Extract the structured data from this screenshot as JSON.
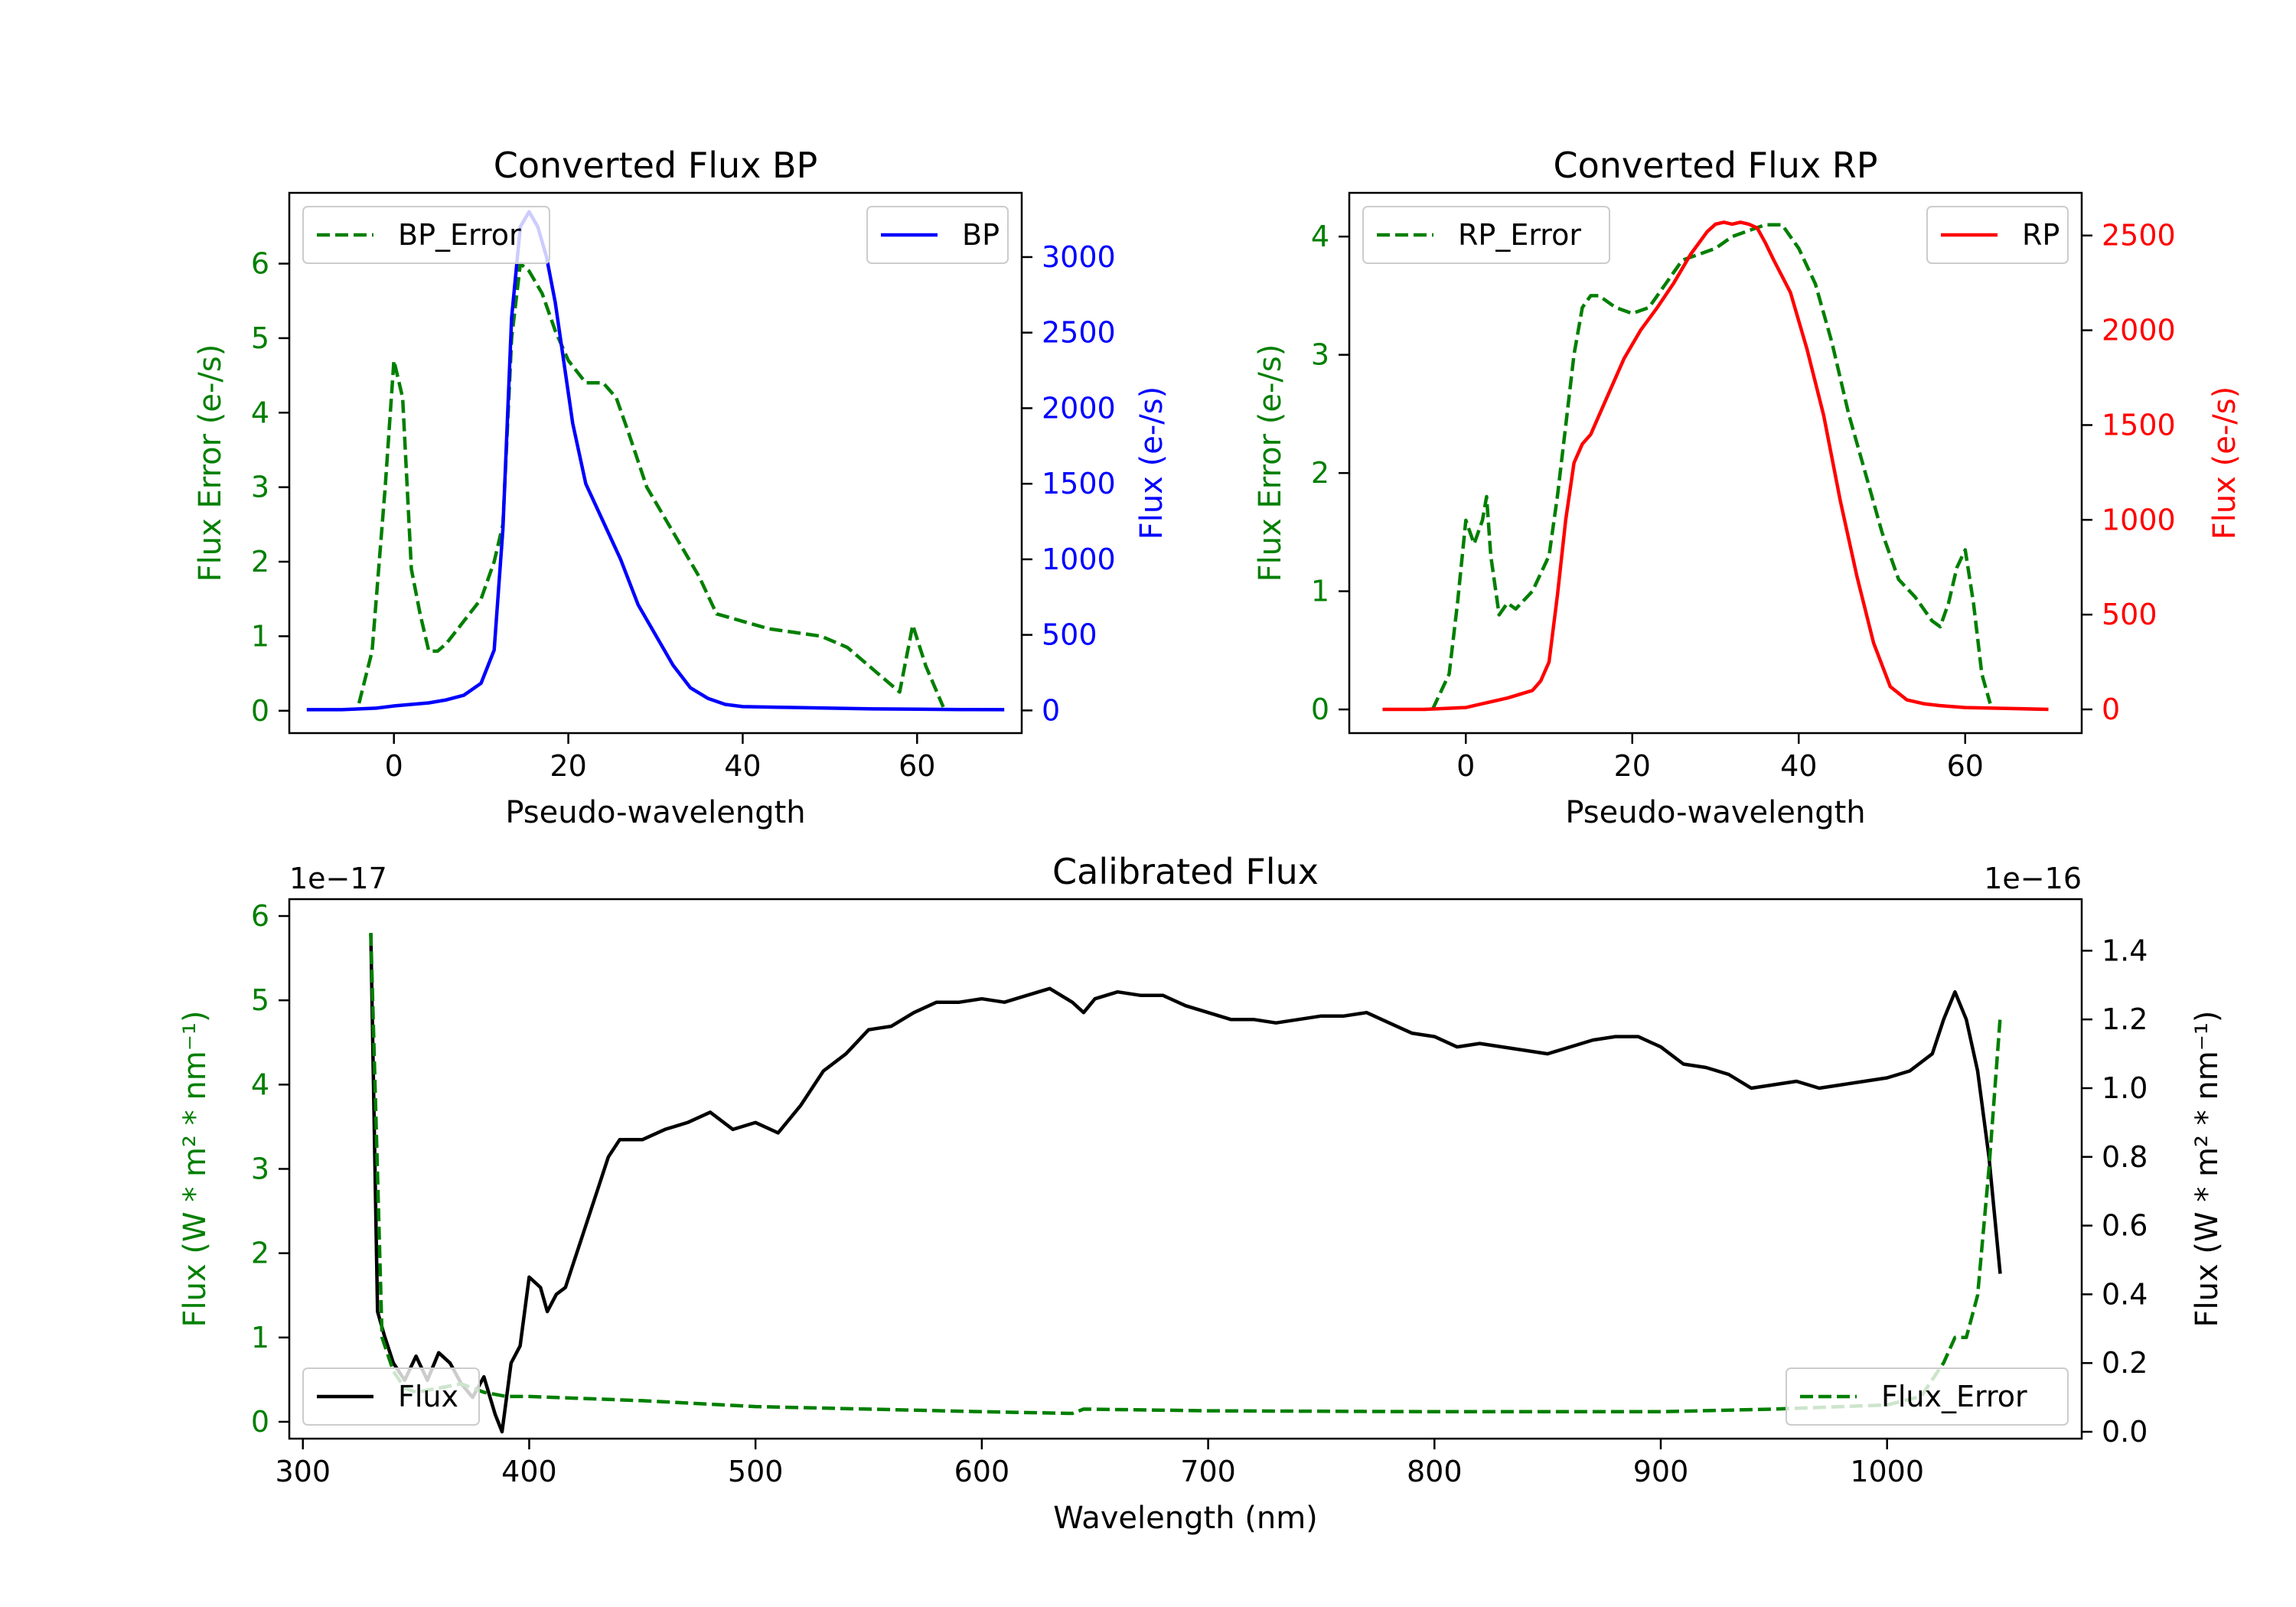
{
  "figure": {
    "background": "#ffffff"
  },
  "colors": {
    "green": "#007f00",
    "blue": "#0000ff",
    "red": "#ff0000",
    "black": "#000000",
    "axis": "#000000"
  },
  "chart_data": [
    {
      "id": "bp",
      "type": "line",
      "title": "Converted Flux BP",
      "xlabel": "Pseudo-wavelength",
      "xlim": [
        -12,
        72
      ],
      "xticks": [
        0,
        20,
        40,
        60
      ],
      "xtick_labels": [
        "0",
        "20",
        "40",
        "60"
      ],
      "left_axis": {
        "label": "Flux Error (e-/s)",
        "color": "#007f00",
        "ylim": [
          -0.3,
          6.95
        ],
        "ticks": [
          0,
          1,
          2,
          3,
          4,
          5,
          6
        ],
        "tick_labels": [
          "0",
          "1",
          "2",
          "3",
          "4",
          "5",
          "6"
        ]
      },
      "right_axis": {
        "label": "Flux (e-/s)",
        "color": "#0000ff",
        "ylim": [
          -150,
          3425
        ],
        "ticks": [
          0,
          500,
          1000,
          1500,
          2000,
          2500,
          3000
        ],
        "tick_labels": [
          "0",
          "500",
          "1000",
          "1500",
          "2000",
          "2500",
          "3000"
        ]
      },
      "series": [
        {
          "name": "BP_Error",
          "axis": "left",
          "color": "#007f00",
          "dashed": true,
          "x": [
            -4,
            -2.5,
            -1,
            0,
            1,
            2,
            3,
            4,
            5,
            6,
            8,
            10,
            11.5,
            12.5,
            13.5,
            14.5,
            15.5,
            17,
            18.5,
            20,
            22,
            24,
            25.5,
            27,
            29,
            31,
            33,
            35,
            37,
            40,
            43,
            46,
            49,
            52,
            55,
            58,
            59.5,
            61,
            63
          ],
          "values": [
            0.1,
            0.8,
            3.0,
            4.7,
            4.2,
            1.9,
            1.3,
            0.8,
            0.8,
            0.9,
            1.2,
            1.5,
            2.0,
            2.5,
            5.0,
            6.0,
            5.9,
            5.6,
            5.1,
            4.7,
            4.4,
            4.4,
            4.2,
            3.7,
            3.0,
            2.6,
            2.2,
            1.8,
            1.3,
            1.2,
            1.1,
            1.05,
            1.0,
            0.85,
            0.55,
            0.25,
            1.15,
            0.6,
            0.05
          ]
        },
        {
          "name": "BP",
          "axis": "right",
          "color": "#0000ff",
          "dashed": false,
          "x": [
            -10,
            -6,
            -2,
            0,
            2,
            4,
            6,
            8,
            10,
            11.5,
            12.5,
            13.5,
            14.5,
            15.5,
            16.5,
            17.5,
            18.5,
            19.5,
            20.5,
            22,
            24,
            26,
            28,
            30,
            32,
            34,
            36,
            38,
            40,
            45,
            50,
            55,
            60,
            65,
            70
          ],
          "values": [
            5,
            5,
            15,
            30,
            40,
            50,
            70,
            100,
            180,
            400,
            1200,
            2600,
            3200,
            3300,
            3200,
            3000,
            2700,
            2300,
            1900,
            1500,
            1250,
            1000,
            700,
            500,
            300,
            150,
            80,
            40,
            25,
            20,
            15,
            10,
            8,
            6,
            5
          ]
        }
      ],
      "legends": [
        {
          "position": "upper-left",
          "label": "BP_Error",
          "color": "#007f00",
          "dashed": true
        },
        {
          "position": "upper-right",
          "label": "BP",
          "color": "#0000ff",
          "dashed": false
        }
      ]
    },
    {
      "id": "rp",
      "type": "line",
      "title": "Converted Flux RP",
      "xlabel": "Pseudo-wavelength",
      "xlim": [
        -14,
        74
      ],
      "xticks": [
        0,
        20,
        40,
        60
      ],
      "xtick_labels": [
        "0",
        "20",
        "40",
        "60"
      ],
      "left_axis": {
        "label": "Flux Error (e-/s)",
        "color": "#007f00",
        "ylim": [
          -0.2,
          4.37
        ],
        "ticks": [
          0,
          1,
          2,
          3,
          4
        ],
        "tick_labels": [
          "0",
          "1",
          "2",
          "3",
          "4"
        ]
      },
      "right_axis": {
        "label": "Flux (e-/s)",
        "color": "#ff0000",
        "ylim": [
          -125,
          2725
        ],
        "ticks": [
          0,
          500,
          1000,
          1500,
          2000,
          2500
        ],
        "tick_labels": [
          "0",
          "500",
          "1000",
          "1500",
          "2000",
          "2500"
        ]
      },
      "series": [
        {
          "name": "RP_Error",
          "axis": "left",
          "color": "#007f00",
          "dashed": true,
          "x": [
            -4,
            -2,
            -1,
            0,
            1,
            2,
            2.5,
            3,
            4,
            5,
            6,
            8,
            10,
            11,
            12,
            13,
            14,
            15,
            16,
            18,
            20,
            22,
            24,
            26,
            28,
            30,
            32,
            34,
            36,
            38,
            40,
            42,
            44,
            46,
            48,
            50,
            52,
            54,
            56,
            57,
            58,
            59,
            60,
            61,
            62,
            63
          ],
          "values": [
            0.0,
            0.3,
            0.9,
            1.6,
            1.4,
            1.6,
            1.8,
            1.3,
            0.8,
            0.9,
            0.85,
            1.0,
            1.3,
            1.8,
            2.4,
            3.0,
            3.4,
            3.5,
            3.5,
            3.4,
            3.35,
            3.4,
            3.6,
            3.8,
            3.85,
            3.9,
            4.0,
            4.05,
            4.1,
            4.1,
            3.9,
            3.6,
            3.1,
            2.5,
            2.0,
            1.5,
            1.1,
            0.95,
            0.75,
            0.7,
            0.9,
            1.2,
            1.35,
            0.9,
            0.3,
            0.05
          ]
        },
        {
          "name": "RP",
          "axis": "right",
          "color": "#ff0000",
          "dashed": false,
          "x": [
            -10,
            -5,
            0,
            2,
            5,
            8,
            9,
            10,
            11,
            12,
            13,
            14,
            15,
            17,
            19,
            21,
            23,
            25,
            27,
            29,
            30,
            31,
            32,
            33,
            34,
            35,
            36,
            37,
            39,
            41,
            43,
            45,
            47,
            49,
            51,
            53,
            55,
            57,
            60,
            65,
            70
          ],
          "values": [
            0,
            0,
            10,
            30,
            60,
            100,
            150,
            250,
            600,
            1000,
            1300,
            1400,
            1450,
            1650,
            1850,
            2000,
            2120,
            2250,
            2400,
            2520,
            2560,
            2570,
            2560,
            2570,
            2560,
            2540,
            2460,
            2370,
            2200,
            1900,
            1550,
            1100,
            700,
            350,
            120,
            50,
            30,
            20,
            10,
            5,
            0
          ]
        }
      ],
      "legends": [
        {
          "position": "upper-left",
          "label": "RP_Error",
          "color": "#007f00",
          "dashed": true
        },
        {
          "position": "upper-right",
          "label": "RP",
          "color": "#ff0000",
          "dashed": false
        }
      ]
    },
    {
      "id": "cal",
      "type": "line",
      "title": "Calibrated Flux",
      "xlabel": "Wavelength (nm)",
      "xlim": [
        294,
        1086
      ],
      "xticks": [
        300,
        400,
        500,
        600,
        700,
        800,
        900,
        1000
      ],
      "xtick_labels": [
        "300",
        "400",
        "500",
        "600",
        "700",
        "800",
        "900",
        "1000"
      ],
      "left_axis": {
        "label": "Flux (W * m² * nm⁻¹)",
        "color": "#007f00",
        "offset_label": "1e−17",
        "ylim": [
          -0.2,
          6.2
        ],
        "ticks": [
          0,
          1,
          2,
          3,
          4,
          5,
          6
        ],
        "tick_labels": [
          "0",
          "1",
          "2",
          "3",
          "4",
          "5",
          "6"
        ]
      },
      "right_axis": {
        "label": "Flux (W * m² * nm⁻¹)",
        "color": "#000000",
        "offset_label": "1e−16",
        "ylim": [
          -0.02,
          1.55
        ],
        "ticks": [
          0,
          0.2,
          0.4,
          0.6,
          0.8,
          1.0,
          1.2,
          1.4
        ],
        "tick_labels": [
          "0.0",
          "0.2",
          "0.4",
          "0.6",
          "0.8",
          "1.0",
          "1.2",
          "1.4"
        ]
      },
      "series": [
        {
          "name": "Flux",
          "axis": "right",
          "color": "#000000",
          "dashed": false,
          "x": [
            330,
            333,
            336,
            340,
            345,
            350,
            355,
            360,
            365,
            370,
            375,
            380,
            385,
            388,
            392,
            396,
            400,
            405,
            408,
            412,
            416,
            420,
            425,
            430,
            435,
            440,
            450,
            460,
            470,
            480,
            490,
            500,
            510,
            520,
            530,
            540,
            550,
            560,
            570,
            580,
            590,
            600,
            610,
            620,
            630,
            640,
            645,
            650,
            660,
            670,
            680,
            690,
            700,
            710,
            720,
            730,
            740,
            750,
            760,
            770,
            780,
            790,
            800,
            810,
            820,
            830,
            840,
            850,
            860,
            870,
            880,
            890,
            900,
            910,
            920,
            930,
            940,
            950,
            960,
            970,
            980,
            990,
            1000,
            1010,
            1020,
            1025,
            1030,
            1035,
            1040,
            1045,
            1050
          ],
          "values": [
            1.45,
            0.35,
            0.28,
            0.2,
            0.15,
            0.22,
            0.15,
            0.23,
            0.2,
            0.14,
            0.1,
            0.16,
            0.05,
            0.0,
            0.2,
            0.25,
            0.45,
            0.42,
            0.35,
            0.4,
            0.42,
            0.5,
            0.6,
            0.7,
            0.8,
            0.85,
            0.85,
            0.88,
            0.9,
            0.93,
            0.88,
            0.9,
            0.87,
            0.95,
            1.05,
            1.1,
            1.17,
            1.18,
            1.22,
            1.25,
            1.25,
            1.26,
            1.25,
            1.27,
            1.29,
            1.25,
            1.22,
            1.26,
            1.28,
            1.27,
            1.27,
            1.24,
            1.22,
            1.2,
            1.2,
            1.19,
            1.2,
            1.21,
            1.21,
            1.22,
            1.19,
            1.16,
            1.15,
            1.12,
            1.13,
            1.12,
            1.11,
            1.1,
            1.12,
            1.14,
            1.15,
            1.15,
            1.12,
            1.07,
            1.06,
            1.04,
            1.0,
            1.01,
            1.02,
            1.0,
            1.01,
            1.02,
            1.03,
            1.05,
            1.1,
            1.2,
            1.28,
            1.2,
            1.05,
            0.8,
            0.46
          ]
        },
        {
          "name": "Flux_Error",
          "axis": "left",
          "color": "#007f00",
          "dashed": true,
          "x": [
            330,
            335,
            340,
            345,
            350,
            360,
            370,
            380,
            390,
            400,
            420,
            450,
            500,
            550,
            600,
            640,
            645,
            700,
            800,
            900,
            950,
            1000,
            1015,
            1025,
            1030,
            1035,
            1040,
            1045,
            1050
          ],
          "values": [
            5.8,
            1.0,
            0.6,
            0.4,
            0.35,
            0.4,
            0.45,
            0.35,
            0.3,
            0.3,
            0.28,
            0.25,
            0.18,
            0.15,
            0.12,
            0.1,
            0.15,
            0.13,
            0.12,
            0.12,
            0.15,
            0.2,
            0.3,
            0.7,
            1.0,
            1.0,
            1.5,
            3.0,
            4.8
          ]
        }
      ],
      "legends": [
        {
          "position": "lower-left",
          "label": "Flux",
          "color": "#000000",
          "dashed": false
        },
        {
          "position": "lower-right",
          "label": "Flux_Error",
          "color": "#007f00",
          "dashed": true
        }
      ]
    }
  ]
}
